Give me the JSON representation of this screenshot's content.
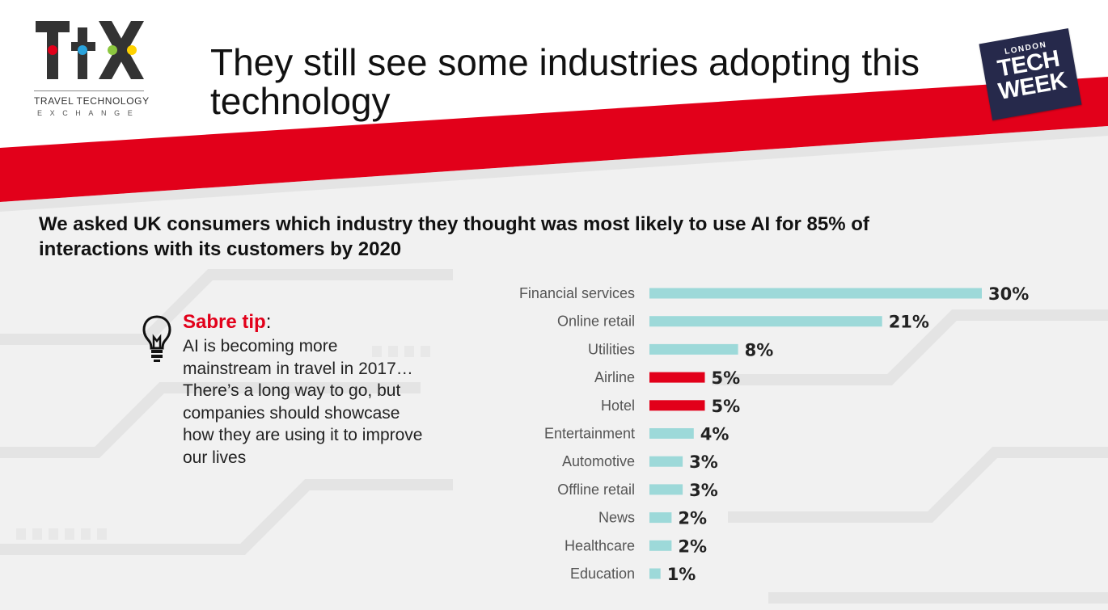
{
  "header": {
    "title": "They still see some industries adopting this technology",
    "logo_ttx": {
      "mark": "TtX",
      "line1": "TRAVEL TECHNOLOGY",
      "line2": "EXCHANGE"
    },
    "logo_ltw": {
      "small": "LONDON",
      "line1": "TECH",
      "line2": "WEEK"
    }
  },
  "question": "We asked UK consumers which industry they thought was most likely to use AI for 85% of interactions with its customers by 2020",
  "tip": {
    "icon": "lightbulb-icon",
    "heading": "Sabre tip",
    "colon": ":",
    "body": "AI is becoming more mainstream in travel in 2017… There’s a long way to go, but companies should showcase how they are using it to improve our lives"
  },
  "colors": {
    "accent_red": "#e2001a",
    "bar_teal": "#9dd9d9",
    "bar_highlight": "#e2001a",
    "navy": "#26294b"
  },
  "chart_data": {
    "type": "bar",
    "orientation": "horizontal",
    "categories": [
      "Financial services",
      "Online retail",
      "Utilities",
      "Airline",
      "Hotel",
      "Entertainment",
      "Automotive",
      "Offline retail",
      "News",
      "Healthcare",
      "Education"
    ],
    "values": [
      30,
      21,
      8,
      5,
      5,
      4,
      3,
      3,
      2,
      2,
      1
    ],
    "value_labels": [
      "30%",
      "21%",
      "8%",
      "5%",
      "5%",
      "4%",
      "3%",
      "3%",
      "2%",
      "2%",
      "1%"
    ],
    "highlighted": [
      "Airline",
      "Hotel"
    ],
    "unit": "%",
    "title": "",
    "xlabel": "",
    "ylabel": "",
    "xlim": [
      0,
      30
    ],
    "grid": false,
    "legend": "none"
  }
}
